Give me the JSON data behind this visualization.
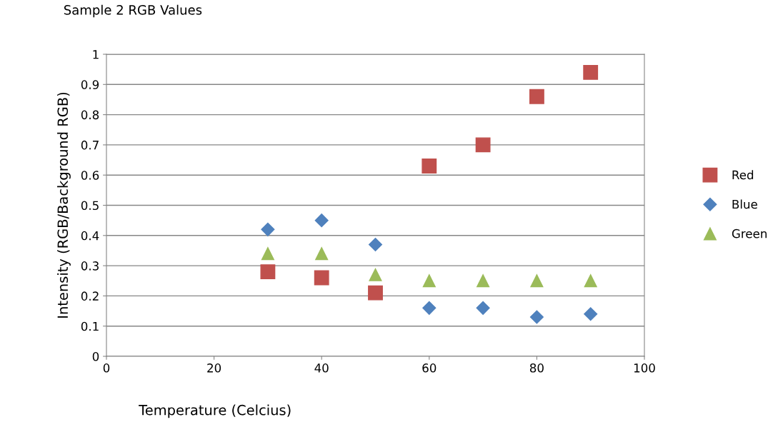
{
  "chart_data": {
    "type": "scatter",
    "title": "Sample 2 RGB Values",
    "xlabel": "Temperature (Celcius)",
    "ylabel": "Intensity (RGB/Background RGB)",
    "x": [
      30,
      40,
      50,
      60,
      70,
      80,
      90
    ],
    "series": [
      {
        "name": "Red",
        "color": "#c0504d",
        "marker": "square",
        "values": [
          0.28,
          0.26,
          0.21,
          0.63,
          0.7,
          0.86,
          0.94
        ]
      },
      {
        "name": "Blue",
        "color": "#4f81bd",
        "marker": "diamond",
        "values": [
          0.42,
          0.45,
          0.37,
          0.16,
          0.16,
          0.13,
          0.14
        ]
      },
      {
        "name": "Green",
        "color": "#9bbb59",
        "marker": "triangle",
        "values": [
          0.34,
          0.34,
          0.27,
          0.25,
          0.25,
          0.25,
          0.25
        ]
      }
    ],
    "xlim": [
      0,
      100
    ],
    "xticks": [
      0,
      20,
      40,
      60,
      80,
      100
    ],
    "ylim": [
      0,
      1
    ],
    "yticks": [
      0,
      0.1,
      0.2,
      0.3,
      0.4,
      0.5,
      0.6,
      0.7,
      0.8,
      0.9,
      1
    ],
    "grid": "y",
    "legend": "right"
  }
}
